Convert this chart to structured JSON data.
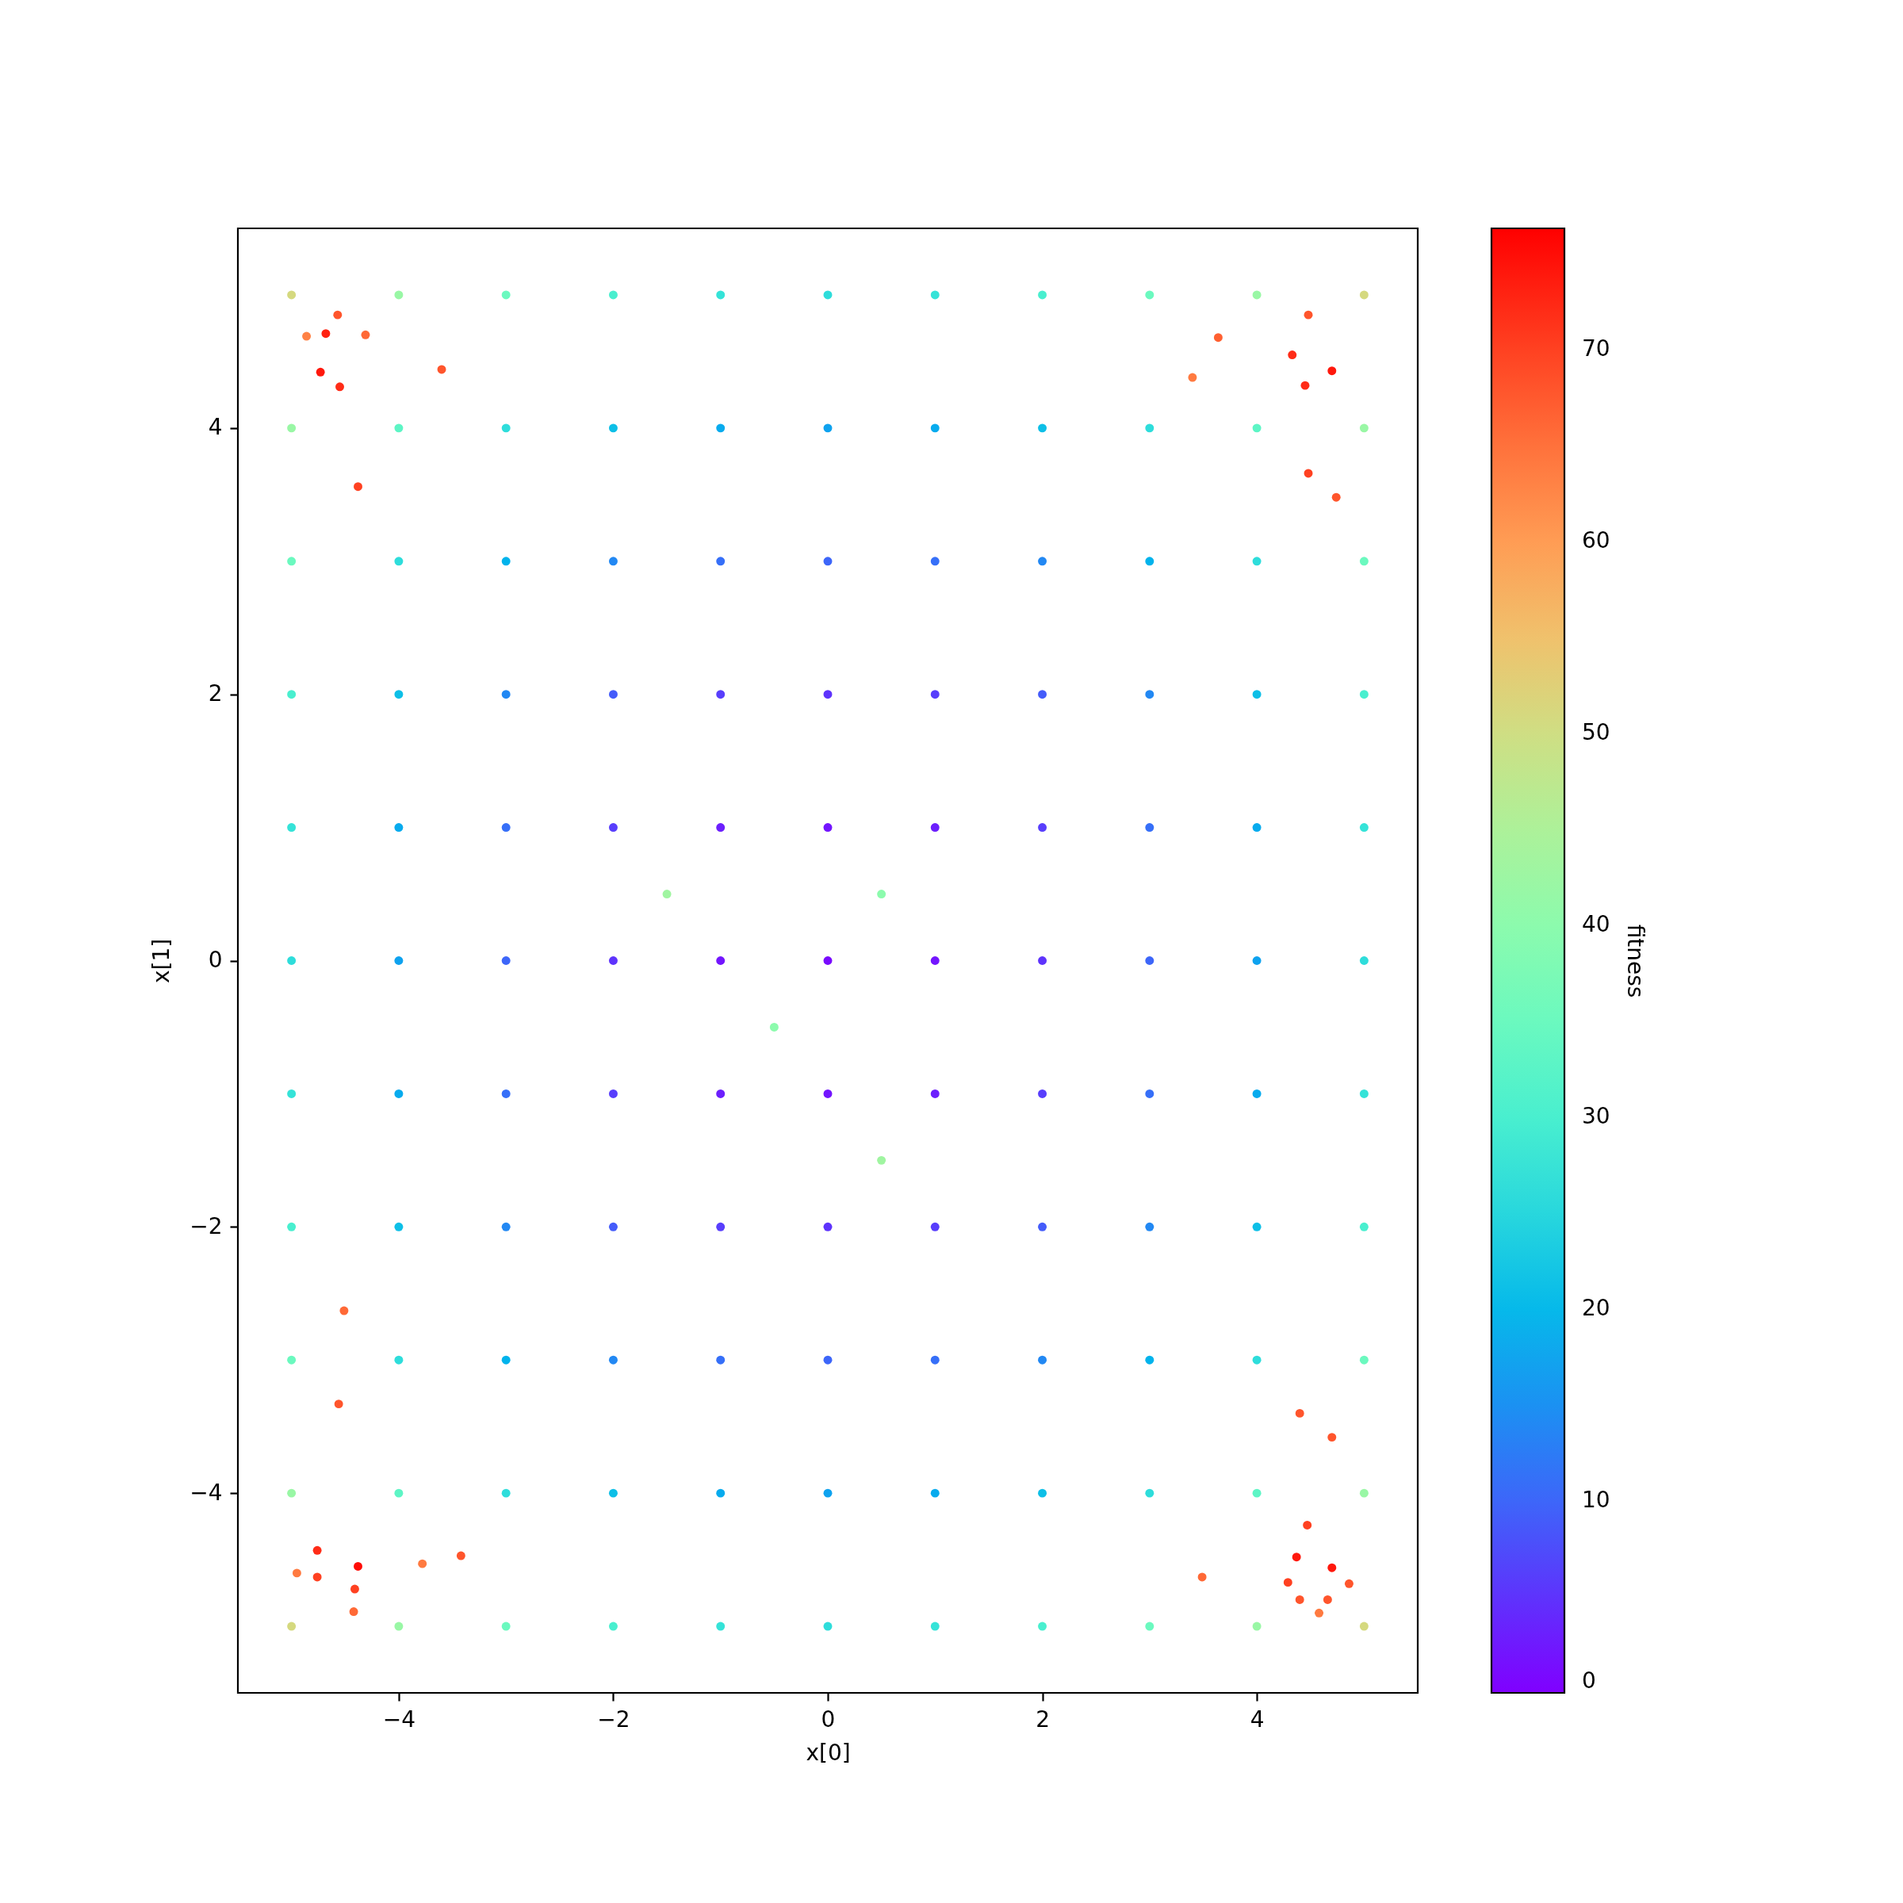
{
  "chart_data": {
    "type": "scatter",
    "xlabel": "x[0]",
    "ylabel": "x[1]",
    "clabel": "fitness",
    "marker": "circle",
    "xlim": [
      -5.5,
      5.5
    ],
    "ylim": [
      -5.5,
      5.5
    ],
    "xticks": [
      -4,
      -2,
      0,
      2,
      4
    ],
    "yticks": [
      -4,
      -2,
      0,
      2,
      4
    ],
    "clim": [
      0,
      76.3
    ],
    "cticks": [
      0,
      10,
      20,
      30,
      40,
      50,
      60,
      70
    ],
    "x": [
      -4,
      -3,
      -2,
      -1,
      0,
      1,
      2,
      3,
      4,
      -4,
      -3,
      -2,
      -1,
      0,
      1,
      2,
      3,
      4,
      -4,
      -3,
      -2,
      -1,
      0,
      1,
      2,
      3,
      4,
      -4,
      -3,
      -2,
      -1,
      0,
      1,
      2,
      3,
      4,
      -4,
      -3,
      -2,
      -1,
      0,
      1,
      2,
      3,
      4,
      -4,
      -3,
      -2,
      -1,
      0,
      1,
      2,
      3,
      4,
      -4,
      -3,
      -2,
      -1,
      0,
      1,
      2,
      3,
      4,
      -4,
      -3,
      -2,
      -1,
      0,
      1,
      2,
      3,
      4,
      -4,
      -3,
      -2,
      -1,
      0,
      1,
      2,
      3,
      4,
      -5,
      -5,
      -5,
      -5,
      -5,
      -5,
      -5,
      -5,
      -5,
      -5,
      -5,
      5,
      5,
      5,
      5,
      5,
      5,
      5,
      5,
      5,
      5,
      5,
      -4,
      -3,
      -2,
      -1,
      0,
      1,
      2,
      3,
      4,
      -4,
      -3,
      -2,
      -1,
      0,
      1,
      2,
      3,
      4,
      -4.68,
      -4.73,
      -4.55,
      -4.57,
      -4.38,
      -3.6,
      -4.86,
      -4.31,
      4.48,
      4.7,
      4.33,
      4.48,
      4.45,
      4.74,
      3.64,
      3.4,
      -4.38,
      -4.76,
      -4.76,
      -4.95,
      -4.41,
      -4.42,
      -4.51,
      -4.56,
      -3.42,
      -3.78,
      4.4,
      4.7,
      4.7,
      4.37,
      4.4,
      4.66,
      4.58,
      4.29,
      4.86,
      4.47,
      3.49,
      0.5,
      -0.5,
      0.5,
      -1.5
    ],
    "values": [
      4,
      4,
      4,
      4,
      4,
      4,
      4,
      4,
      4,
      3,
      3,
      3,
      3,
      3,
      3,
      3,
      3,
      3,
      2,
      2,
      2,
      2,
      2,
      2,
      2,
      2,
      2,
      1,
      1,
      1,
      1,
      1,
      1,
      1,
      1,
      1,
      0,
      0,
      0,
      0,
      0,
      0,
      0,
      0,
      0,
      -1,
      -1,
      -1,
      -1,
      -1,
      -1,
      -1,
      -1,
      -1,
      -2,
      -2,
      -2,
      -2,
      -2,
      -2,
      -2,
      -2,
      -2,
      -3,
      -3,
      -3,
      -3,
      -3,
      -3,
      -3,
      -3,
      -3,
      -4,
      -4,
      -4,
      -4,
      -4,
      -4,
      -4,
      -4,
      -4,
      5,
      4,
      3,
      2,
      1,
      0,
      -1,
      -2,
      -3,
      -4,
      -5,
      5,
      4,
      3,
      2,
      1,
      0,
      -1,
      -2,
      -3,
      -4,
      -5,
      5,
      5,
      5,
      5,
      5,
      5,
      5,
      5,
      5,
      -5,
      -5,
      -5,
      -5,
      -5,
      -5,
      -5,
      -5,
      -5,
      4.71,
      4.42,
      4.31,
      4.85,
      3.56,
      4.44,
      4.69,
      4.7,
      4.85,
      4.43,
      4.55,
      3.66,
      4.32,
      3.48,
      4.68,
      4.38,
      -4.55,
      -4.43,
      -4.63,
      -4.6,
      -4.72,
      -4.89,
      -2.63,
      -3.33,
      -4.47,
      -4.53,
      -3.4,
      -3.58,
      -4.56,
      -4.48,
      -4.8,
      -4.8,
      -4.9,
      -4.67,
      -4.68,
      -4.24,
      -4.63,
      0.5,
      -0.5,
      -1.5,
      0.5
    ],
    "cvalues": [
      33,
      26,
      21,
      18,
      17,
      18,
      21,
      26,
      33,
      26,
      19,
      14,
      11,
      10,
      11,
      14,
      19,
      26,
      21,
      14,
      9,
      6,
      5,
      6,
      9,
      14,
      21,
      18,
      11,
      6,
      3,
      2,
      3,
      6,
      11,
      18,
      17,
      10,
      5,
      2,
      1,
      2,
      5,
      10,
      17,
      18,
      11,
      6,
      3,
      2,
      3,
      6,
      11,
      18,
      21,
      14,
      9,
      6,
      5,
      6,
      9,
      14,
      21,
      26,
      19,
      14,
      11,
      10,
      11,
      14,
      19,
      26,
      33,
      26,
      21,
      18,
      17,
      18,
      21,
      26,
      33,
      51,
      42,
      35,
      30,
      27,
      26,
      27,
      30,
      35,
      42,
      51,
      51,
      42,
      35,
      30,
      27,
      26,
      27,
      30,
      35,
      42,
      51,
      42,
      35,
      30,
      27,
      26,
      27,
      30,
      35,
      42,
      42,
      35,
      30,
      27,
      26,
      27,
      30,
      35,
      42,
      73,
      74,
      72,
      68,
      70,
      68,
      63,
      66,
      68,
      74,
      72,
      70,
      72,
      68,
      67,
      64,
      75,
      72,
      70,
      64,
      70,
      66,
      66,
      68,
      68,
      64,
      68,
      68,
      74,
      74,
      68,
      68,
      64,
      70,
      68,
      70,
      66,
      40,
      40,
      43,
      43
    ]
  }
}
